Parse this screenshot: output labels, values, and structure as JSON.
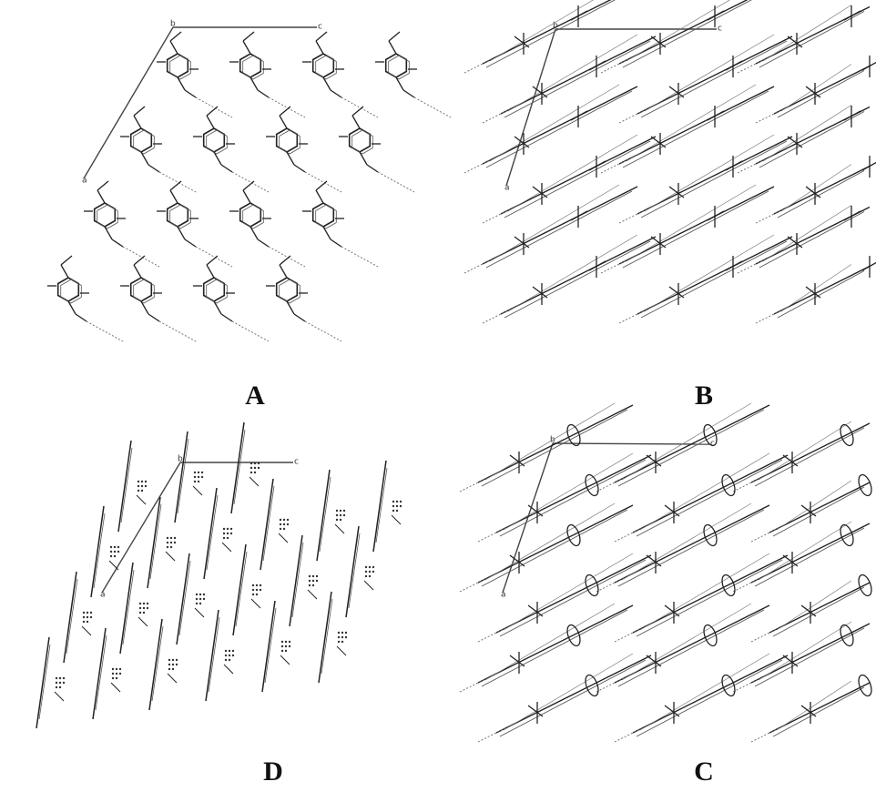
{
  "panels": [
    {
      "label": "A",
      "axis_labels": [
        "b",
        "c",
        "a"
      ]
    },
    {
      "label": "B",
      "axis_labels": [
        "b",
        "c",
        "a"
      ]
    },
    {
      "label": "D",
      "axis_labels": [
        "b",
        "c",
        "a"
      ]
    },
    {
      "label": "C",
      "axis_labels": [
        "b",
        "c",
        "a"
      ]
    }
  ]
}
